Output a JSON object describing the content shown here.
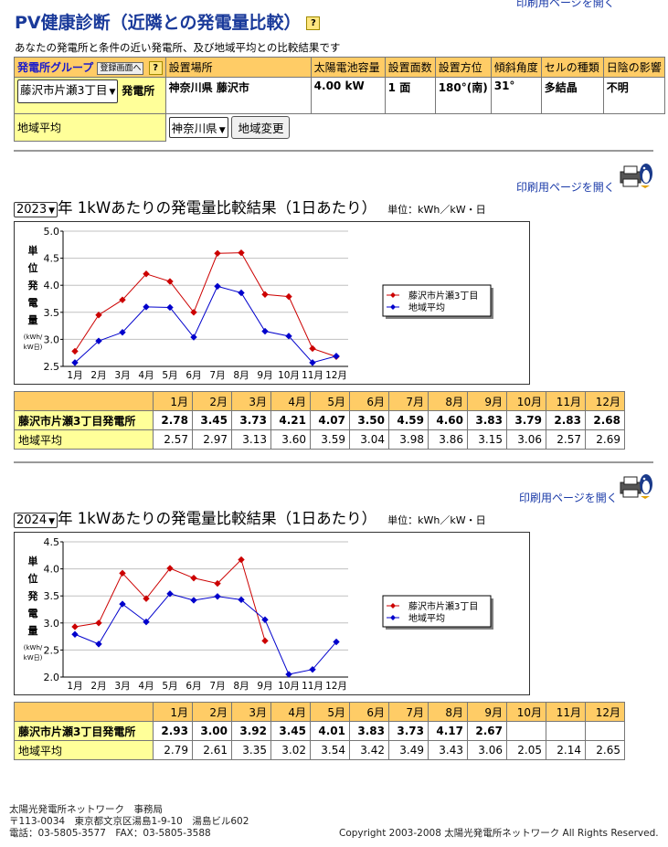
{
  "header": {
    "title": "PV健康診断（近隣との発電量比較）",
    "print_top": "印刷用ページを開く",
    "help_glyph": "?",
    "subtitle": "あなたの発電所と条件の近い発電所、及び地域平均との比較結果です"
  },
  "info_table": {
    "headers": [
      "発電所グループ",
      "設置場所",
      "太陽電池容量",
      "設置面数",
      "設置方位",
      "傾斜角度",
      "セルの種類",
      "日陰の影響"
    ],
    "register_button": "登録画面へ",
    "plant_select": "藤沢市片瀬3丁目",
    "plant_suffix": "発電所",
    "location": "神奈川県 藤沢市",
    "capacity": "4.00 kW",
    "faces": "1 面",
    "azimuth": "180°(南)",
    "tilt": "31°",
    "cell": "多結晶",
    "shade": "不明",
    "region_label": "地域平均",
    "region_select": "神奈川県",
    "region_button": "地域変更"
  },
  "sections": [
    {
      "year": "2023",
      "print_label": "印刷用ページを開く",
      "title": "年 1kWあたりの発電量比較結果（1日あたり）",
      "unit": "単位：kWh／kW・日",
      "row1_label": "藤沢市片瀬3丁目発電所",
      "row2_label": "地域平均",
      "row1_values": [
        "2.78",
        "3.45",
        "3.73",
        "4.21",
        "4.07",
        "3.50",
        "4.59",
        "4.60",
        "3.83",
        "3.79",
        "2.83",
        "2.68"
      ],
      "row2_values": [
        "2.57",
        "2.97",
        "3.13",
        "3.60",
        "3.59",
        "3.04",
        "3.98",
        "3.86",
        "3.15",
        "3.06",
        "2.57",
        "2.69"
      ]
    },
    {
      "year": "2024",
      "print_label": "印刷用ページを開く",
      "title": "年 1kWあたりの発電量比較結果（1日あたり）",
      "unit": "単位：kWh／kW・日",
      "row1_label": "藤沢市片瀬3丁目発電所",
      "row2_label": "地域平均",
      "row1_values": [
        "2.93",
        "3.00",
        "3.92",
        "3.45",
        "4.01",
        "3.83",
        "3.73",
        "4.17",
        "2.67",
        "",
        "",
        ""
      ],
      "row2_values": [
        "2.79",
        "2.61",
        "3.35",
        "3.02",
        "3.54",
        "3.42",
        "3.49",
        "3.43",
        "3.06",
        "2.05",
        "2.14",
        "2.65"
      ]
    }
  ],
  "months": [
    "1月",
    "2月",
    "3月",
    "4月",
    "5月",
    "6月",
    "7月",
    "8月",
    "9月",
    "10月",
    "11月",
    "12月"
  ],
  "chart_data": [
    {
      "type": "line",
      "categories": [
        "1月",
        "2月",
        "3月",
        "4月",
        "5月",
        "6月",
        "7月",
        "8月",
        "9月",
        "10月",
        "11月",
        "12月"
      ],
      "ylabel": "単位発電量(kWh/kW日)",
      "ylabel_lines": [
        "単",
        "位",
        "発",
        "電",
        "量",
        "(kWh/",
        "kW日)"
      ],
      "ylim": [
        2.5,
        5.0
      ],
      "yticks": [
        "2.5",
        "3.0",
        "3.5",
        "4.0",
        "4.5",
        "5.0"
      ],
      "legend_position": "right",
      "series": [
        {
          "name": "藤沢市片瀬3丁目",
          "color": "#cc0000",
          "values": [
            2.78,
            3.45,
            3.73,
            4.21,
            4.07,
            3.5,
            4.59,
            4.6,
            3.83,
            3.79,
            2.83,
            2.68
          ]
        },
        {
          "name": "地域平均",
          "color": "#0000cc",
          "values": [
            2.57,
            2.97,
            3.13,
            3.6,
            3.59,
            3.04,
            3.98,
            3.86,
            3.15,
            3.06,
            2.57,
            2.69
          ]
        }
      ]
    },
    {
      "type": "line",
      "categories": [
        "1月",
        "2月",
        "3月",
        "4月",
        "5月",
        "6月",
        "7月",
        "8月",
        "9月",
        "10月",
        "11月",
        "12月"
      ],
      "ylabel": "単位発電量(kWh/kW日)",
      "ylabel_lines": [
        "単",
        "位",
        "発",
        "電",
        "量",
        "(kWh/",
        "kW日)"
      ],
      "ylim": [
        2.0,
        4.5
      ],
      "yticks": [
        "2.0",
        "2.5",
        "3.0",
        "3.5",
        "4.0",
        "4.5"
      ],
      "legend_position": "right",
      "series": [
        {
          "name": "藤沢市片瀬3丁目",
          "color": "#cc0000",
          "values": [
            2.93,
            3.0,
            3.92,
            3.45,
            4.01,
            3.83,
            3.73,
            4.17,
            2.67,
            null,
            null,
            null
          ]
        },
        {
          "name": "地域平均",
          "color": "#0000cc",
          "values": [
            2.79,
            2.61,
            3.35,
            3.02,
            3.54,
            3.42,
            3.49,
            3.43,
            3.06,
            2.05,
            2.14,
            2.65
          ]
        }
      ]
    }
  ],
  "footer": {
    "org": "太陽光発電所ネットワーク　事務局",
    "address": "〒113-0034　東京都文京区湯島1-9-10　湯島ビル602",
    "phone": "電話：03-5805-3577　FAX：03-5805-3588",
    "copyright": "Copyright 2003-2008 太陽光発電所ネットワーク All Rights Reserved."
  }
}
